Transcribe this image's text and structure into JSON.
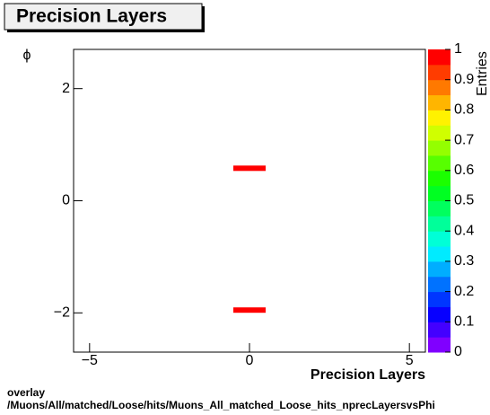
{
  "chart_data": {
    "type": "heatmap",
    "title": "Precision Layers",
    "x_label": "Precision Layers",
    "y_label": "ϕ",
    "z_label": "Entries",
    "x": [
      0,
      0
    ],
    "y": [
      0.58,
      -1.95
    ],
    "z": [
      1,
      1
    ],
    "xlim": [
      -5.5,
      5.5
    ],
    "xticks": [
      {
        "value": -5,
        "label": "−5"
      },
      0,
      5
    ],
    "ylim": [
      -2.7,
      2.7
    ],
    "yticks": [
      {
        "value": -2,
        "label": "−2"
      },
      0,
      2
    ],
    "zlim": [
      0,
      1
    ],
    "zticks": [
      0,
      0.1,
      0.2,
      0.3,
      0.4,
      0.5,
      0.6,
      0.7,
      0.8,
      0.9,
      1
    ],
    "footer": [
      "overlay",
      "/Muons/All/matched/Loose/hits/Muons_All_matched_Loose_hits_nprecLayersvsPhi"
    ]
  }
}
